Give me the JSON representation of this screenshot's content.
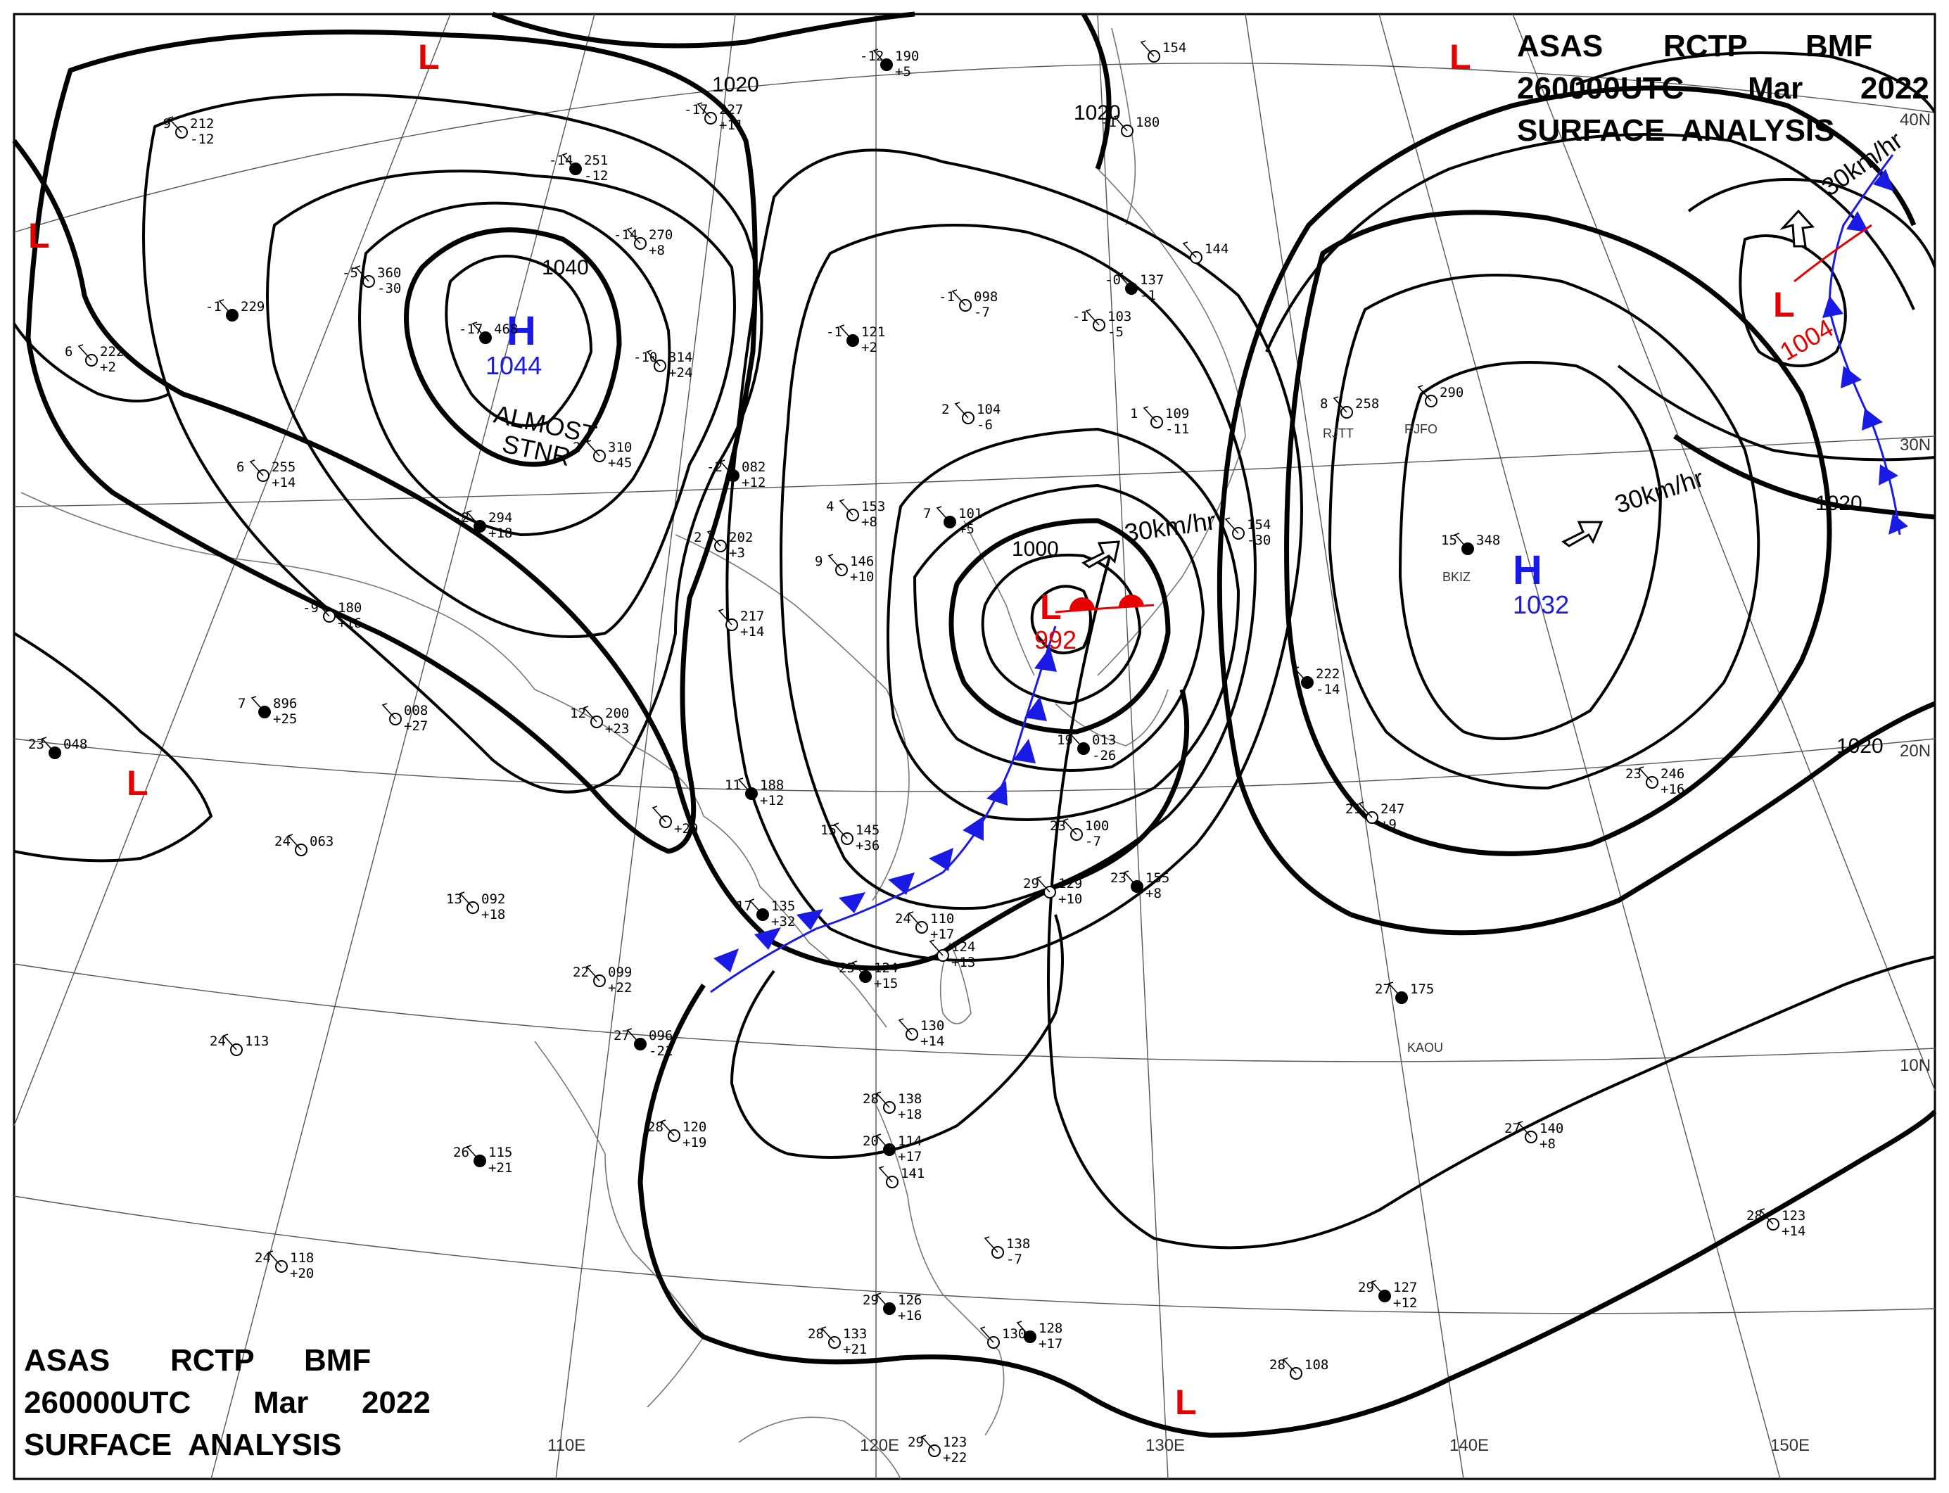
{
  "header_top": {
    "line1": [
      "ASAS",
      "RCTP",
      "BMF"
    ],
    "line2": [
      "260000UTC",
      "Mar",
      "2022"
    ],
    "line3": "SURFACE  ANALYSIS"
  },
  "header_bottom": {
    "line1": [
      "ASAS",
      "RCTP",
      "BMF"
    ],
    "line2": [
      "260000UTC",
      "Mar",
      "2022"
    ],
    "line3": "SURFACE  ANALYSIS"
  },
  "longitude_labels": [
    "110E",
    "120E",
    "130E",
    "140E",
    "150E"
  ],
  "latitude_labels": [
    "40N",
    "30N",
    "20N",
    "10N"
  ],
  "isobar_labels": [
    "1020",
    "1020",
    "1040",
    "1000",
    "1020",
    "1020"
  ],
  "pressure_centers": [
    {
      "type": "H",
      "value": "1044"
    },
    {
      "type": "L",
      "value": "992"
    },
    {
      "type": "H",
      "value": "1032"
    },
    {
      "type": "L",
      "value": "1004"
    },
    {
      "type": "L",
      "value": ""
    },
    {
      "type": "L",
      "value": ""
    },
    {
      "type": "L",
      "value": ""
    },
    {
      "type": "L",
      "value": ""
    },
    {
      "type": "L",
      "value": ""
    }
  ],
  "annotations": {
    "stationary_line1": "ALMOST",
    "stationary_line2": "STNR",
    "motion_1": "30km/hr",
    "motion_2": "30km/hr",
    "motion_3": "30km/hr"
  },
  "colors": {
    "high": "#1a1ae6",
    "low": "#e60000",
    "cold_front": "#1a1ae6",
    "warm_front": "#e60000"
  },
  "station_plots": [
    {
      "temp": "-12",
      "pres": "190",
      "tend": "+5"
    },
    {
      "temp": "-17",
      "pres": "227",
      "tend": "+11"
    },
    {
      "temp": "-9",
      "pres": "212",
      "tend": "-12"
    },
    {
      "temp": "-14",
      "pres": "251",
      "tend": "-12"
    },
    {
      "temp": "-14",
      "pres": "270",
      "tend": "+8"
    },
    {
      "temp": "-5",
      "pres": "360",
      "tend": "-30"
    },
    {
      "temp": "-1",
      "pres": "229",
      "tend": ""
    },
    {
      "temp": "6",
      "pres": "222",
      "tend": "+2"
    },
    {
      "temp": "-10",
      "pres": "314",
      "tend": "+24"
    },
    {
      "temp": "-17",
      "pres": "468",
      "tend": ""
    },
    {
      "temp": "6",
      "pres": "255",
      "tend": "+14"
    },
    {
      "temp": "2",
      "pres": "310",
      "tend": "+45"
    },
    {
      "temp": "-2",
      "pres": "294",
      "tend": "+18"
    },
    {
      "temp": "-9",
      "pres": "180",
      "tend": "+16"
    },
    {
      "temp": "-1",
      "pres": "098",
      "tend": "-7"
    },
    {
      "temp": "-0",
      "pres": "137",
      "tend": "-1"
    },
    {
      "temp": "-1",
      "pres": "103",
      "tend": "-5"
    },
    {
      "temp": "-1",
      "pres": "180",
      "tend": ""
    },
    {
      "temp": "-1",
      "pres": "121",
      "tend": "+2"
    },
    {
      "temp": "2",
      "pres": "104",
      "tend": "-6"
    },
    {
      "temp": "1",
      "pres": "109",
      "tend": "-11"
    },
    {
      "temp": "-2",
      "pres": "082",
      "tend": "+12"
    },
    {
      "temp": "2",
      "pres": "202",
      "tend": "+3"
    },
    {
      "temp": "4",
      "pres": "153",
      "tend": "+8"
    },
    {
      "temp": "7",
      "pres": "101",
      "tend": "+5"
    },
    {
      "temp": "9",
      "pres": "146",
      "tend": "+10"
    },
    {
      "temp": "",
      "pres": "217",
      "tend": "+14"
    },
    {
      "temp": "7",
      "pres": "896",
      "tend": "+25"
    },
    {
      "temp": "",
      "pres": "008",
      "tend": "+27"
    },
    {
      "temp": "12",
      "pres": "200",
      "tend": "+23"
    },
    {
      "temp": "23",
      "pres": "048",
      "tend": ""
    },
    {
      "temp": "24",
      "pres": "063",
      "tend": ""
    },
    {
      "temp": "13",
      "pres": "092",
      "tend": "+18"
    },
    {
      "temp": "11",
      "pres": "188",
      "tend": "+12"
    },
    {
      "temp": "",
      "pres": "",
      "tend": "+29"
    },
    {
      "temp": "15",
      "pres": "145",
      "tend": "+36"
    },
    {
      "temp": "17",
      "pres": "135",
      "tend": "+32"
    },
    {
      "temp": "22",
      "pres": "099",
      "tend": "+22"
    },
    {
      "temp": "24",
      "pres": "110",
      "tend": "+17"
    },
    {
      "temp": "25",
      "pres": "124",
      "tend": "+15"
    },
    {
      "temp": "",
      "pres": "124",
      "tend": "+13"
    },
    {
      "temp": "",
      "pres": "130",
      "tend": "+14"
    },
    {
      "temp": "27",
      "pres": "096",
      "tend": "-21"
    },
    {
      "temp": "24",
      "pres": "113",
      "tend": ""
    },
    {
      "temp": "28",
      "pres": "120",
      "tend": "+19"
    },
    {
      "temp": "26",
      "pres": "115",
      "tend": "+21"
    },
    {
      "temp": "24",
      "pres": "118",
      "tend": "+20"
    },
    {
      "temp": "28",
      "pres": "138",
      "tend": "+18"
    },
    {
      "temp": "20",
      "pres": "114",
      "tend": "+17"
    },
    {
      "temp": "",
      "pres": "141",
      "tend": ""
    },
    {
      "temp": "",
      "pres": "138",
      "tend": "-7"
    },
    {
      "temp": "29",
      "pres": "126",
      "tend": "+16"
    },
    {
      "temp": "28",
      "pres": "133",
      "tend": "+21"
    },
    {
      "temp": "",
      "pres": "130",
      "tend": ""
    },
    {
      "temp": "",
      "pres": "128",
      "tend": "+17"
    },
    {
      "temp": "29",
      "pres": "123",
      "tend": "+22"
    },
    {
      "temp": "28",
      "pres": "108",
      "tend": ""
    },
    {
      "temp": "29",
      "pres": "127",
      "tend": "+12"
    },
    {
      "temp": "28",
      "pres": "123",
      "tend": "+14"
    },
    {
      "temp": "27",
      "pres": "140",
      "tend": "+8"
    },
    {
      "temp": "27",
      "pres": "175",
      "tend": ""
    },
    {
      "temp": "23",
      "pres": "246",
      "tend": "+16"
    },
    {
      "temp": "21",
      "pres": "247",
      "tend": "+9"
    },
    {
      "temp": "15",
      "pres": "348",
      "tend": ""
    },
    {
      "temp": "8",
      "pres": "258",
      "tend": ""
    },
    {
      "temp": "",
      "pres": "290",
      "tend": ""
    },
    {
      "temp": "",
      "pres": "222",
      "tend": "-14"
    },
    {
      "temp": "23",
      "pres": "100",
      "tend": "-7"
    },
    {
      "temp": "29",
      "pres": "129",
      "tend": "+10"
    },
    {
      "temp": "23",
      "pres": "155",
      "tend": "+8"
    },
    {
      "temp": "",
      "pres": "154",
      "tend": ""
    },
    {
      "temp": "",
      "pres": "144",
      "tend": ""
    },
    {
      "temp": "19",
      "pres": "013",
      "tend": "-26"
    },
    {
      "temp": "",
      "pres": "154",
      "tend": "-30"
    }
  ],
  "station_ids": [
    "RJTT",
    "RJFO",
    "BKIZ",
    "KAOU"
  ]
}
